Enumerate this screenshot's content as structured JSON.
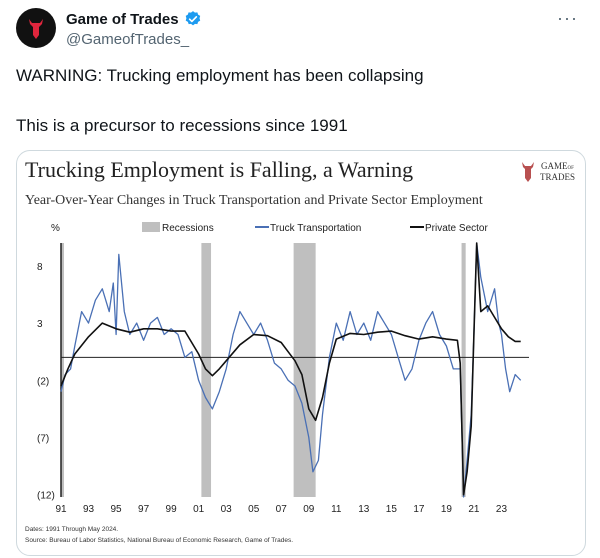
{
  "account": {
    "display_name": "Game of Trades",
    "handle": "@GameofTrades_",
    "verified_icon": "verified-badge-icon"
  },
  "tweet": {
    "line1": "WARNING: Trucking employment has been collapsing",
    "line2": "This is a precursor to recessions since 1991"
  },
  "more_icon": "more-horizontal-icon",
  "brand": {
    "line1": "GAME",
    "small": "OF",
    "line2": "TRADES"
  },
  "colors": {
    "truck": "#4a70b5",
    "private": "#111111",
    "recession": "#bfbfbf",
    "verified": "#1d9bf0"
  },
  "chart_data": {
    "type": "line",
    "title": "Trucking Employment is Falling, a Warning",
    "subtitle": "Year-Over-Year Changes in Truck Transportation and Private Sector Employment",
    "ylabel": "%",
    "yticks": [
      "8",
      "3",
      "(2)",
      "(7)",
      "(12)"
    ],
    "ytick_values": [
      8,
      3,
      -2,
      -7,
      -12
    ],
    "ylim": [
      -12.2,
      10
    ],
    "xlim": [
      1991,
      2025
    ],
    "xticks": [
      "91",
      "93",
      "95",
      "97",
      "99",
      "01",
      "03",
      "05",
      "07",
      "09",
      "11",
      "13",
      "15",
      "17",
      "19",
      "21",
      "23"
    ],
    "xtick_values": [
      1991,
      1993,
      1995,
      1997,
      1999,
      2001,
      2003,
      2005,
      2007,
      2009,
      2011,
      2013,
      2015,
      2017,
      2019,
      2021,
      2023
    ],
    "legend": [
      "Recessions",
      "Truck Transportation",
      "Private Sector"
    ],
    "legend_position": "top",
    "recessions": [
      [
        1990.6,
        1991.2
      ],
      [
        2001.2,
        2001.9
      ],
      [
        2007.9,
        2009.5
      ],
      [
        2020.1,
        2020.4
      ]
    ],
    "series": [
      {
        "name": "Truck Transportation",
        "x": [
          1991,
          1991.3,
          1991.7,
          1992,
          1992.5,
          1993,
          1993.5,
          1994,
          1994.5,
          1994.8,
          1995,
          1995.2,
          1995.6,
          1996,
          1996.5,
          1997,
          1997.5,
          1998,
          1998.5,
          1999,
          1999.5,
          2000,
          2000.5,
          2001,
          2001.5,
          2002,
          2002.5,
          2003,
          2003.5,
          2004,
          2004.5,
          2005,
          2005.5,
          2006,
          2006.5,
          2007,
          2007.5,
          2008,
          2008.5,
          2009,
          2009.3,
          2009.7,
          2010,
          2010.5,
          2011,
          2011.5,
          2012,
          2012.5,
          2013,
          2013.5,
          2014,
          2014.5,
          2015,
          2015.5,
          2016,
          2016.5,
          2017,
          2017.5,
          2018,
          2018.5,
          2019,
          2019.5,
          2020,
          2020.25,
          2020.5,
          2020.8,
          2021,
          2021.2,
          2021.5,
          2022,
          2022.5,
          2022.8,
          2023,
          2023.3,
          2023.6,
          2024,
          2024.4
        ],
        "values": [
          -3,
          -1.5,
          -1,
          1,
          4,
          3,
          5,
          6,
          4,
          6.5,
          2,
          9,
          4,
          2,
          3,
          1.5,
          3,
          3.5,
          2,
          2.5,
          2,
          0,
          0.5,
          -2,
          -3.5,
          -4.5,
          -3,
          -1,
          2,
          4,
          3,
          2,
          3,
          1.5,
          -0.5,
          -1,
          -2,
          -2.5,
          -4,
          -7,
          -10,
          -9,
          -5,
          0,
          3,
          1.5,
          4,
          2,
          3,
          1.5,
          4,
          3,
          2,
          0,
          -2,
          -1,
          1.5,
          3,
          4,
          2,
          1,
          -1,
          -1,
          -14,
          -9,
          -5,
          2,
          12,
          7,
          4,
          6,
          3,
          2,
          -1,
          -3,
          -1.5,
          -2
        ]
      },
      {
        "name": "Private Sector",
        "x": [
          1991,
          1991.5,
          1992,
          1993,
          1994,
          1995,
          1996,
          1997,
          1998,
          1999,
          2000,
          2001,
          2001.5,
          2002,
          2002.5,
          2003,
          2004,
          2005,
          2006,
          2007,
          2007.5,
          2008,
          2008.5,
          2009,
          2009.5,
          2010,
          2010.5,
          2011,
          2012,
          2013,
          2014,
          2015,
          2016,
          2017,
          2018,
          2019,
          2019.8,
          2020,
          2020.25,
          2020.5,
          2020.8,
          2021,
          2021.2,
          2021.5,
          2022,
          2022.5,
          2023,
          2023.5,
          2024,
          2024.4
        ],
        "values": [
          -2.5,
          -1,
          0.3,
          1.8,
          3,
          2.5,
          2.2,
          2.5,
          2.5,
          2.3,
          2.3,
          0.3,
          -1,
          -1.6,
          -1,
          -0.3,
          1.1,
          2,
          1.9,
          1.3,
          0.5,
          -0.3,
          -1.5,
          -4.5,
          -5.5,
          -3.5,
          -0.5,
          1.6,
          2.1,
          2,
          2.2,
          2.3,
          1.9,
          1.6,
          1.8,
          1.6,
          1.5,
          -0.5,
          -12,
          -10,
          -6,
          2,
          10,
          4,
          4.5,
          3.5,
          2.5,
          1.8,
          1.4,
          1.4
        ]
      }
    ]
  },
  "footnotes": {
    "dates": "Dates: 1991 Through May 2024.",
    "source": "Source: Bureau of Labor Statistics, National Bureau of Economic Research, Game of Trades."
  }
}
